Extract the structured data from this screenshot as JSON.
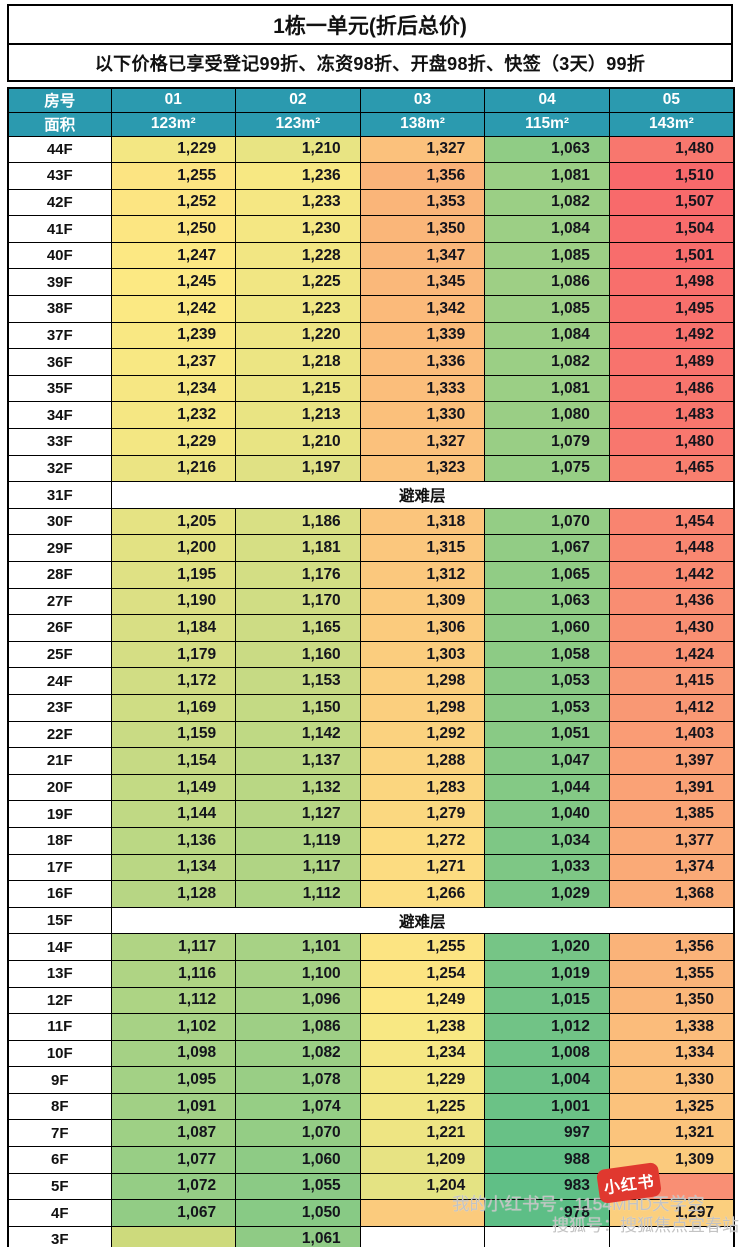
{
  "header": {
    "title": "1栋一单元(折后总价)",
    "subtitle": "以下价格已享受登记99折、冻资98折、开盘98折、快签（3天）99折"
  },
  "table": {
    "corner_labels": [
      "房号",
      "面积"
    ],
    "units": [
      "01",
      "02",
      "03",
      "04",
      "05"
    ],
    "areas": [
      "123m²",
      "123m²",
      "138m²",
      "115m²",
      "143m²"
    ],
    "refuge_label": "避难层",
    "header_bg": "#2b9aaf",
    "color_scale": {
      "min_value": 978,
      "mid_value": 1244,
      "max_value": 1510,
      "min_color": "#5dbe86",
      "mid_color": "#fce983",
      "max_color": "#f8696b"
    },
    "blank_fills": {
      "3F-0": "#cdda7c",
      "4F-2": "#fbcb7d",
      "5F-4": "#f98f74"
    },
    "rows": [
      {
        "floor": "44F",
        "values": [
          "1,229",
          "1,210",
          "1,327",
          "1,063",
          "1,480"
        ]
      },
      {
        "floor": "43F",
        "values": [
          "1,255",
          "1,236",
          "1,356",
          "1,081",
          "1,510"
        ]
      },
      {
        "floor": "42F",
        "values": [
          "1,252",
          "1,233",
          "1,353",
          "1,082",
          "1,507"
        ]
      },
      {
        "floor": "41F",
        "values": [
          "1,250",
          "1,230",
          "1,350",
          "1,084",
          "1,504"
        ]
      },
      {
        "floor": "40F",
        "values": [
          "1,247",
          "1,228",
          "1,347",
          "1,085",
          "1,501"
        ]
      },
      {
        "floor": "39F",
        "values": [
          "1,245",
          "1,225",
          "1,345",
          "1,086",
          "1,498"
        ]
      },
      {
        "floor": "38F",
        "values": [
          "1,242",
          "1,223",
          "1,342",
          "1,085",
          "1,495"
        ]
      },
      {
        "floor": "37F",
        "values": [
          "1,239",
          "1,220",
          "1,339",
          "1,084",
          "1,492"
        ]
      },
      {
        "floor": "36F",
        "values": [
          "1,237",
          "1,218",
          "1,336",
          "1,082",
          "1,489"
        ]
      },
      {
        "floor": "35F",
        "values": [
          "1,234",
          "1,215",
          "1,333",
          "1,081",
          "1,486"
        ]
      },
      {
        "floor": "34F",
        "values": [
          "1,232",
          "1,213",
          "1,330",
          "1,080",
          "1,483"
        ]
      },
      {
        "floor": "33F",
        "values": [
          "1,229",
          "1,210",
          "1,327",
          "1,079",
          "1,480"
        ]
      },
      {
        "floor": "32F",
        "values": [
          "1,216",
          "1,197",
          "1,323",
          "1,075",
          "1,465"
        ]
      },
      {
        "floor": "31F",
        "refuge": true
      },
      {
        "floor": "30F",
        "values": [
          "1,205",
          "1,186",
          "1,318",
          "1,070",
          "1,454"
        ]
      },
      {
        "floor": "29F",
        "values": [
          "1,200",
          "1,181",
          "1,315",
          "1,067",
          "1,448"
        ]
      },
      {
        "floor": "28F",
        "values": [
          "1,195",
          "1,176",
          "1,312",
          "1,065",
          "1,442"
        ]
      },
      {
        "floor": "27F",
        "values": [
          "1,190",
          "1,170",
          "1,309",
          "1,063",
          "1,436"
        ]
      },
      {
        "floor": "26F",
        "values": [
          "1,184",
          "1,165",
          "1,306",
          "1,060",
          "1,430"
        ]
      },
      {
        "floor": "25F",
        "values": [
          "1,179",
          "1,160",
          "1,303",
          "1,058",
          "1,424"
        ]
      },
      {
        "floor": "24F",
        "values": [
          "1,172",
          "1,153",
          "1,298",
          "1,053",
          "1,415"
        ]
      },
      {
        "floor": "23F",
        "values": [
          "1,169",
          "1,150",
          "1,298",
          "1,053",
          "1,412"
        ]
      },
      {
        "floor": "22F",
        "values": [
          "1,159",
          "1,142",
          "1,292",
          "1,051",
          "1,403"
        ]
      },
      {
        "floor": "21F",
        "values": [
          "1,154",
          "1,137",
          "1,288",
          "1,047",
          "1,397"
        ]
      },
      {
        "floor": "20F",
        "values": [
          "1,149",
          "1,132",
          "1,283",
          "1,044",
          "1,391"
        ]
      },
      {
        "floor": "19F",
        "values": [
          "1,144",
          "1,127",
          "1,279",
          "1,040",
          "1,385"
        ]
      },
      {
        "floor": "18F",
        "values": [
          "1,136",
          "1,119",
          "1,272",
          "1,034",
          "1,377"
        ]
      },
      {
        "floor": "17F",
        "values": [
          "1,134",
          "1,117",
          "1,271",
          "1,033",
          "1,374"
        ]
      },
      {
        "floor": "16F",
        "values": [
          "1,128",
          "1,112",
          "1,266",
          "1,029",
          "1,368"
        ]
      },
      {
        "floor": "15F",
        "refuge": true
      },
      {
        "floor": "14F",
        "values": [
          "1,117",
          "1,101",
          "1,255",
          "1,020",
          "1,356"
        ]
      },
      {
        "floor": "13F",
        "values": [
          "1,116",
          "1,100",
          "1,254",
          "1,019",
          "1,355"
        ]
      },
      {
        "floor": "12F",
        "values": [
          "1,112",
          "1,096",
          "1,249",
          "1,015",
          "1,350"
        ]
      },
      {
        "floor": "11F",
        "values": [
          "1,102",
          "1,086",
          "1,238",
          "1,012",
          "1,338"
        ]
      },
      {
        "floor": "10F",
        "values": [
          "1,098",
          "1,082",
          "1,234",
          "1,008",
          "1,334"
        ]
      },
      {
        "floor": "9F",
        "values": [
          "1,095",
          "1,078",
          "1,229",
          "1,004",
          "1,330"
        ]
      },
      {
        "floor": "8F",
        "values": [
          "1,091",
          "1,074",
          "1,225",
          "1,001",
          "1,325"
        ]
      },
      {
        "floor": "7F",
        "values": [
          "1,087",
          "1,070",
          "1,221",
          "997",
          "1,321"
        ]
      },
      {
        "floor": "6F",
        "values": [
          "1,077",
          "1,060",
          "1,209",
          "988",
          "1,309"
        ]
      },
      {
        "floor": "5F",
        "values": [
          "1,072",
          "1,055",
          "1,204",
          "983",
          ""
        ]
      },
      {
        "floor": "4F",
        "values": [
          "1,067",
          "1,050",
          "",
          "978",
          "1,297"
        ]
      },
      {
        "floor": "3F",
        "values": [
          "",
          "1,061",
          "",
          "",
          ""
        ]
      }
    ]
  },
  "watermarks": {
    "line1": "我的小红书号：1154MHD天学空",
    "line2": "搜狐号：搜狐焦点宜春站",
    "badge": "小红书"
  }
}
